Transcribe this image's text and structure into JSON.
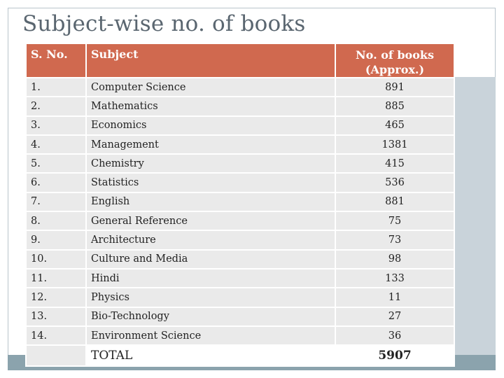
{
  "title": "Subject-wise no. of books",
  "table": {
    "headers": {
      "sno": "S. No.",
      "subject": "Subject",
      "count_line1": "No. of books",
      "count_line2": "(Approx.)"
    },
    "rows": [
      {
        "sno": "1.",
        "subject": "Computer Science",
        "count": "891"
      },
      {
        "sno": "2.",
        "subject": "Mathematics",
        "count": "885"
      },
      {
        "sno": "3.",
        "subject": "Economics",
        "count": "465"
      },
      {
        "sno": "4.",
        "subject": "Management",
        "count": "1381"
      },
      {
        "sno": "5.",
        "subject": "Chemistry",
        "count": "415"
      },
      {
        "sno": "6.",
        "subject": "Statistics",
        "count": "536"
      },
      {
        "sno": "7.",
        "subject": "English",
        "count": "881"
      },
      {
        "sno": "8.",
        "subject": "General Reference",
        "count": "75"
      },
      {
        "sno": "9.",
        "subject": "Architecture",
        "count": "73"
      },
      {
        "sno": "10.",
        "subject": "Culture and Media",
        "count": "98"
      },
      {
        "sno": "11.",
        "subject": "Hindi",
        "count": "133"
      },
      {
        "sno": "12.",
        "subject": "Physics",
        "count": "11"
      },
      {
        "sno": "13.",
        "subject": "Bio-Technology",
        "count": "27"
      },
      {
        "sno": "14.",
        "subject": "Environment Science",
        "count": "36"
      }
    ],
    "total": {
      "label": "TOTAL",
      "count": "5907"
    }
  },
  "colors": {
    "header_bg": "#d0694f",
    "row_bg": "#eaeaea",
    "title": "#5a6670",
    "accent_bar": "#8ba3ad",
    "side_panel": "#c9d3da"
  }
}
